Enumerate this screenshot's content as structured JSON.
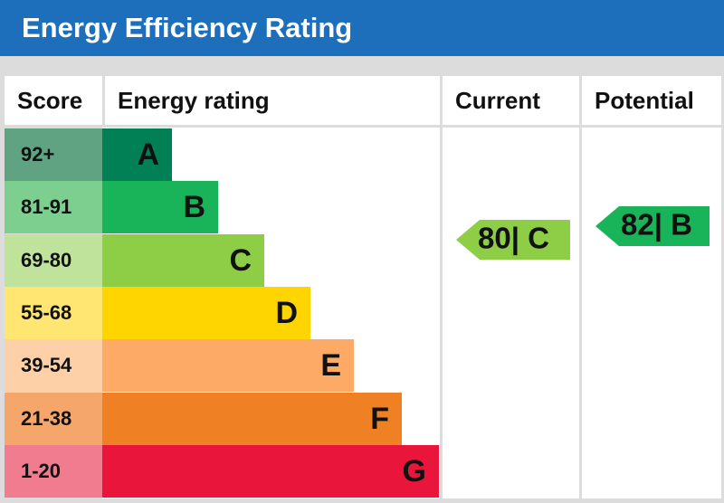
{
  "header": {
    "title": "Energy Efficiency Rating"
  },
  "table": {
    "headers": [
      "Score",
      "Energy rating",
      "Current",
      "Potential"
    ],
    "bands": [
      {
        "score": "92+",
        "rating": "A",
        "color": "#008054",
        "score_color": "#5fa383"
      },
      {
        "score": "81-91",
        "rating": "B",
        "color": "#19b459",
        "score_color": "#7dcf90"
      },
      {
        "score": "69-80",
        "rating": "C",
        "color": "#8dce46",
        "score_color": "#bfe39a"
      },
      {
        "score": "55-68",
        "rating": "D",
        "color": "#ffd500",
        "score_color": "#ffe673"
      },
      {
        "score": "39-54",
        "rating": "E",
        "color": "#fcaa65",
        "score_color": "#fdd0a8"
      },
      {
        "score": "21-38",
        "rating": "F",
        "color": "#ef8023",
        "score_color": "#f5a66b"
      },
      {
        "score": "1-20",
        "rating": "G",
        "color": "#e9153b",
        "score_color": "#f17b8f"
      }
    ],
    "current": {
      "label": "80| C",
      "color": "#8dce46"
    },
    "potential": {
      "label": "82| B",
      "color": "#19b459"
    }
  }
}
